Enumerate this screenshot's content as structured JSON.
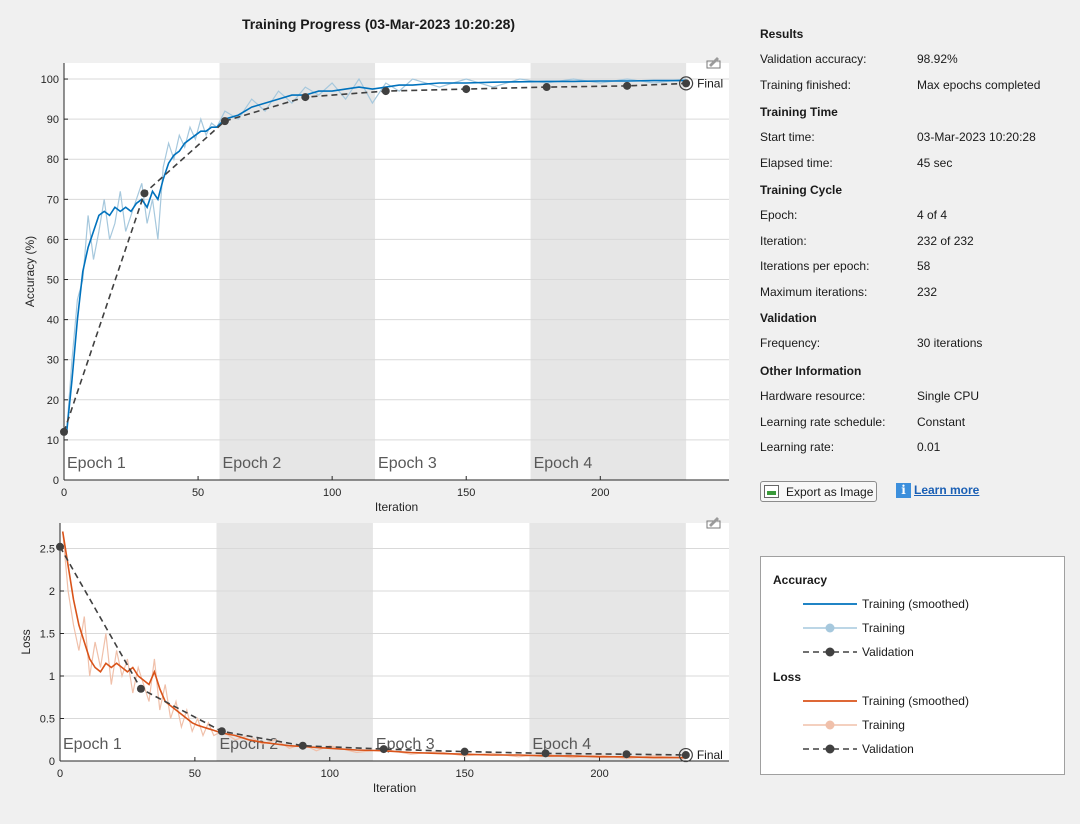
{
  "title": "Training Progress (03-Mar-2023 10:20:28)",
  "results": {
    "sections": [
      {
        "heading": "Results",
        "rows": [
          {
            "label": "Validation accuracy:",
            "value": "98.92%"
          },
          {
            "label": "Training finished:",
            "value": "Max epochs completed"
          }
        ]
      },
      {
        "heading": "Training Time",
        "rows": [
          {
            "label": "Start time:",
            "value": "03-Mar-2023 10:20:28"
          },
          {
            "label": "Elapsed time:",
            "value": "45 sec"
          }
        ]
      },
      {
        "heading": "Training Cycle",
        "rows": [
          {
            "label": "Epoch:",
            "value": "4 of 4"
          },
          {
            "label": "Iteration:",
            "value": "232 of 232"
          },
          {
            "label": "Iterations per epoch:",
            "value": "58"
          },
          {
            "label": "Maximum iterations:",
            "value": "232"
          }
        ]
      },
      {
        "heading": "Validation",
        "rows": [
          {
            "label": "Frequency:",
            "value": "30 iterations"
          }
        ]
      },
      {
        "heading": "Other Information",
        "rows": [
          {
            "label": "Hardware resource:",
            "value": "Single CPU"
          },
          {
            "label": "Learning rate schedule:",
            "value": "Constant"
          },
          {
            "label": "Learning rate:",
            "value": "0.01"
          }
        ]
      }
    ]
  },
  "buttons": {
    "export": "Export as Image",
    "learn_more": "Learn more"
  },
  "icons": {
    "export": "export-image-icon",
    "info": "info-icon",
    "toolbar": "axes-toolbar-icon"
  },
  "legend": {
    "groups": [
      {
        "heading": "Accuracy",
        "items": [
          {
            "label": "Training (smoothed)",
            "style": "smooth",
            "color": "#0072bd"
          },
          {
            "label": "Training",
            "style": "raw",
            "color": "#a6c8dd"
          },
          {
            "label": "Validation",
            "style": "validation",
            "color": "#404040"
          }
        ]
      },
      {
        "heading": "Loss",
        "items": [
          {
            "label": "Training (smoothed)",
            "style": "smooth",
            "color": "#d95319"
          },
          {
            "label": "Training",
            "style": "raw",
            "color": "#f0c0aa"
          },
          {
            "label": "Validation",
            "style": "validation",
            "color": "#404040"
          }
        ]
      }
    ]
  },
  "chart_data": [
    {
      "type": "line",
      "xlabel": "Iteration",
      "ylabel": "Accuracy (%)",
      "xlim": [
        0,
        248
      ],
      "ylim": [
        0,
        104
      ],
      "xticks": [
        0,
        50,
        100,
        150,
        200
      ],
      "yticks": [
        0,
        10,
        20,
        30,
        40,
        50,
        60,
        70,
        80,
        90,
        100
      ],
      "epochs": [
        {
          "label": "Epoch 1",
          "start": 0,
          "end": 58,
          "shaded": false
        },
        {
          "label": "Epoch 2",
          "start": 58,
          "end": 116,
          "shaded": true
        },
        {
          "label": "Epoch 3",
          "start": 116,
          "end": 174,
          "shaded": false
        },
        {
          "label": "Epoch 4",
          "start": 174,
          "end": 232,
          "shaded": true
        }
      ],
      "final_label": "Final",
      "colors": {
        "smooth": "#0072bd",
        "raw": "#a6c8dd",
        "validation": "#404040"
      },
      "series": [
        {
          "name": "Training (smoothed)",
          "x": [
            1,
            3,
            5,
            7,
            9,
            11,
            13,
            15,
            17,
            19,
            21,
            23,
            25,
            27,
            29,
            31,
            33,
            35,
            37,
            39,
            41,
            43,
            45,
            47,
            49,
            51,
            53,
            55,
            57,
            60,
            65,
            70,
            75,
            80,
            85,
            90,
            95,
            100,
            105,
            110,
            115,
            120,
            125,
            130,
            140,
            150,
            160,
            170,
            180,
            190,
            200,
            210,
            220,
            232
          ],
          "y": [
            12,
            25,
            40,
            52,
            58,
            62,
            66,
            67,
            66,
            68,
            67,
            68,
            67,
            69,
            70,
            68,
            72,
            70,
            75,
            79,
            81,
            82,
            84,
            85,
            86,
            87,
            87,
            88,
            88,
            90,
            91,
            93,
            94,
            95,
            96,
            96,
            97,
            97,
            97.5,
            98,
            97.5,
            98,
            98.5,
            98.5,
            99,
            99,
            99.2,
            99.3,
            99.4,
            99.4,
            99.5,
            99.5,
            99.6,
            99.6
          ]
        },
        {
          "name": "Training",
          "x": [
            1,
            3,
            5,
            7,
            9,
            11,
            13,
            15,
            17,
            19,
            21,
            23,
            25,
            27,
            29,
            31,
            33,
            35,
            37,
            39,
            41,
            43,
            45,
            47,
            49,
            51,
            53,
            55,
            57,
            60,
            65,
            70,
            75,
            80,
            85,
            90,
            95,
            100,
            105,
            110,
            115,
            120,
            125,
            130,
            140,
            150,
            160,
            170,
            180,
            190,
            200,
            210,
            220,
            232
          ],
          "y": [
            12,
            30,
            45,
            50,
            66,
            55,
            62,
            70,
            60,
            64,
            72,
            62,
            66,
            70,
            74,
            64,
            70,
            60,
            78,
            84,
            80,
            86,
            83,
            88,
            85,
            90,
            86,
            89,
            88,
            92,
            90,
            95,
            92,
            97,
            94,
            98,
            96,
            99,
            95,
            100,
            94,
            99,
            97,
            100,
            98,
            100,
            98,
            100,
            99,
            100,
            99,
            100,
            99,
            100
          ]
        },
        {
          "name": "Validation",
          "x": [
            0,
            30,
            60,
            90,
            120,
            150,
            180,
            210,
            232
          ],
          "y": [
            12,
            71.5,
            89.5,
            95.5,
            97,
            97.5,
            98,
            98.3,
            98.92
          ]
        }
      ]
    },
    {
      "type": "line",
      "xlabel": "Iteration",
      "ylabel": "Loss",
      "xlim": [
        0,
        248
      ],
      "ylim": [
        0,
        2.8
      ],
      "xticks": [
        0,
        50,
        100,
        150,
        200
      ],
      "yticks": [
        0,
        0.5,
        1,
        1.5,
        2,
        2.5
      ],
      "ytick_labels": [
        "0",
        "0.5",
        "1",
        "1.5",
        "2",
        "2.5"
      ],
      "epochs": [
        {
          "label": "Epoch 1",
          "start": 0,
          "end": 58,
          "shaded": false
        },
        {
          "label": "Epoch 2",
          "start": 58,
          "end": 116,
          "shaded": true
        },
        {
          "label": "Epoch 3",
          "start": 116,
          "end": 174,
          "shaded": false
        },
        {
          "label": "Epoch 4",
          "start": 174,
          "end": 232,
          "shaded": true
        }
      ],
      "final_label": "Final",
      "colors": {
        "smooth": "#d95319",
        "raw": "#f0c0aa",
        "validation": "#404040"
      },
      "series": [
        {
          "name": "Training (smoothed)",
          "x": [
            1,
            3,
            5,
            7,
            9,
            11,
            13,
            15,
            17,
            19,
            21,
            23,
            25,
            27,
            29,
            31,
            33,
            35,
            37,
            39,
            41,
            43,
            45,
            47,
            49,
            51,
            53,
            55,
            57,
            60,
            65,
            70,
            75,
            80,
            85,
            90,
            95,
            100,
            110,
            120,
            130,
            140,
            150,
            160,
            170,
            180,
            190,
            200,
            210,
            220,
            232
          ],
          "y": [
            2.7,
            2.3,
            1.9,
            1.6,
            1.4,
            1.2,
            1.1,
            1.05,
            1.15,
            1.1,
            1.15,
            1.1,
            1.05,
            1.1,
            1.0,
            0.95,
            0.9,
            1.05,
            0.85,
            0.7,
            0.65,
            0.6,
            0.55,
            0.5,
            0.45,
            0.42,
            0.4,
            0.38,
            0.36,
            0.33,
            0.3,
            0.25,
            0.22,
            0.2,
            0.18,
            0.17,
            0.16,
            0.15,
            0.13,
            0.12,
            0.1,
            0.09,
            0.08,
            0.07,
            0.07,
            0.06,
            0.06,
            0.05,
            0.05,
            0.04,
            0.04
          ]
        },
        {
          "name": "Training",
          "x": [
            1,
            3,
            5,
            7,
            9,
            11,
            13,
            15,
            17,
            19,
            21,
            23,
            25,
            27,
            29,
            31,
            33,
            35,
            37,
            39,
            41,
            43,
            45,
            47,
            49,
            51,
            53,
            55,
            57,
            60,
            65,
            70,
            75,
            80,
            85,
            90,
            95,
            100,
            110,
            120,
            130,
            140,
            150,
            160,
            170,
            180,
            190,
            200,
            210,
            220,
            232
          ],
          "y": [
            2.7,
            2.0,
            1.6,
            1.3,
            1.7,
            1.0,
            1.4,
            1.1,
            1.5,
            0.9,
            1.3,
            1.0,
            1.2,
            0.8,
            1.1,
            0.9,
            0.7,
            1.2,
            0.6,
            0.9,
            0.5,
            0.7,
            0.4,
            0.6,
            0.35,
            0.5,
            0.3,
            0.45,
            0.3,
            0.35,
            0.25,
            0.3,
            0.2,
            0.25,
            0.15,
            0.2,
            0.12,
            0.18,
            0.1,
            0.14,
            0.08,
            0.11,
            0.06,
            0.09,
            0.05,
            0.08,
            0.04,
            0.07,
            0.03,
            0.06,
            0.03
          ]
        },
        {
          "name": "Validation",
          "x": [
            0,
            30,
            60,
            90,
            120,
            150,
            180,
            210,
            232
          ],
          "y": [
            2.52,
            0.85,
            0.35,
            0.18,
            0.14,
            0.11,
            0.09,
            0.08,
            0.07
          ]
        }
      ]
    }
  ]
}
